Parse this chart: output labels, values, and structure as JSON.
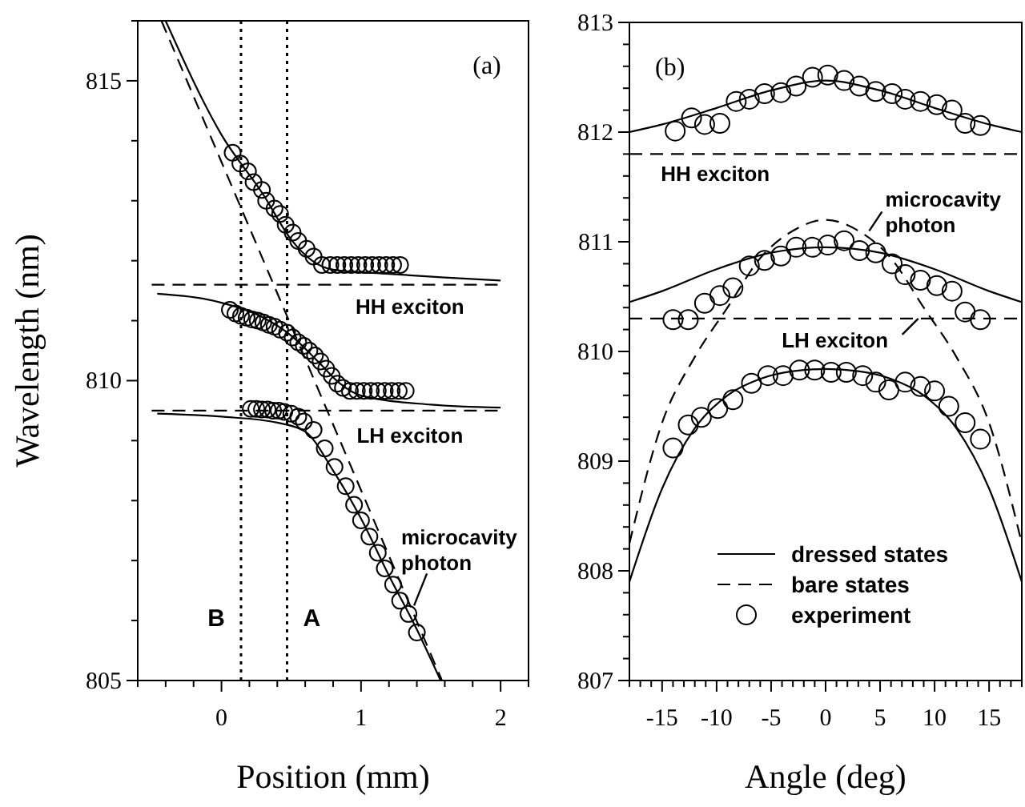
{
  "chart_data": [
    {
      "type": "line",
      "xlabel": "Position (mm)",
      "ylabel": "Wavelength (nm)",
      "xlim": [
        -0.6,
        2.2
      ],
      "ylim": [
        805,
        816
      ],
      "xticks": [
        {
          "value": -0.6,
          "label": null
        },
        {
          "value": -0.4,
          "label": null
        },
        {
          "value": -0.2,
          "label": null
        },
        0,
        {
          "value": 0.2,
          "label": null
        },
        {
          "value": 0.4,
          "label": null
        },
        {
          "value": 0.6,
          "label": null
        },
        {
          "value": 0.8,
          "label": null
        },
        1,
        {
          "value": 1.2,
          "label": null
        },
        {
          "value": 1.4,
          "label": null
        },
        {
          "value": 1.6,
          "label": null
        },
        {
          "value": 1.8,
          "label": null
        },
        2,
        {
          "value": 2.2,
          "label": null
        }
      ],
      "yticks": [
        805,
        {
          "value": 806,
          "label": null
        },
        {
          "value": 807,
          "label": null
        },
        {
          "value": 808,
          "label": null
        },
        {
          "value": 809,
          "label": null
        },
        810,
        {
          "value": 811,
          "label": null
        },
        {
          "value": 812,
          "label": null
        },
        {
          "value": 813,
          "label": null
        },
        {
          "value": 814,
          "label": null
        },
        815,
        {
          "value": 816,
          "label": null
        }
      ],
      "series": [
        {
          "type": "line",
          "color": "#000000",
          "line_style": "solid",
          "x": [
            -0.4,
            0,
            0.3,
            0.5,
            0.65,
            0.8,
            1.2,
            1.6,
            2.0
          ],
          "values": [
            816,
            814.1,
            813.1,
            812.35,
            812.0,
            811.85,
            811.78,
            811.72,
            811.67
          ]
        },
        {
          "type": "line",
          "color": "#000000",
          "line_style": "solid",
          "x": [
            -0.46,
            0,
            0.3,
            0.5,
            0.7,
            0.85,
            1.0,
            1.5,
            2.0
          ],
          "values": [
            811.45,
            811.3,
            811.05,
            810.75,
            810.3,
            809.95,
            809.75,
            809.6,
            809.55
          ]
        },
        {
          "type": "line",
          "color": "#000000",
          "line_style": "solid",
          "x": [
            -0.46,
            0,
            0.4,
            0.6,
            0.8,
            1.0,
            1.2,
            1.4,
            1.57
          ],
          "values": [
            809.45,
            809.4,
            809.3,
            809.15,
            808.5,
            807.7,
            806.75,
            805.85,
            805.0
          ]
        },
        {
          "type": "line",
          "color": "#000000",
          "line_style": "dashed",
          "x": [
            -0.43,
            1.58
          ],
          "values": [
            816,
            805
          ]
        },
        {
          "type": "line",
          "color": "#000000",
          "line_style": "dashed",
          "x": [
            -0.5,
            2.0
          ],
          "values": [
            811.6,
            811.6
          ]
        },
        {
          "type": "line",
          "color": "#000000",
          "line_style": "dashed",
          "x": [
            -0.5,
            2.0
          ],
          "values": [
            809.5,
            809.5
          ]
        },
        {
          "type": "scatter",
          "color": "#000000",
          "marker": "circle",
          "x": [
            0.08,
            0.135,
            0.19,
            0.23,
            0.29,
            0.32,
            0.38,
            0.42,
            0.46,
            0.51,
            0.55,
            0.61,
            0.66,
            0.72,
            0.78,
            0.83,
            0.88,
            0.93,
            0.98,
            1.03,
            1.08,
            1.13,
            1.18,
            1.23,
            1.28
          ],
          "values": [
            813.8,
            813.62,
            813.49,
            813.31,
            813.18,
            813.0,
            812.87,
            812.78,
            812.6,
            812.47,
            812.33,
            812.2,
            812.07,
            811.93,
            811.93,
            811.93,
            811.93,
            811.93,
            811.93,
            811.93,
            811.93,
            811.93,
            811.93,
            811.93,
            811.93
          ]
        },
        {
          "type": "scatter",
          "color": "#000000",
          "marker": "circle",
          "x": [
            0.06,
            0.1,
            0.14,
            0.18,
            0.22,
            0.26,
            0.3,
            0.34,
            0.38,
            0.42,
            0.47,
            0.51,
            0.55,
            0.59,
            0.63,
            0.67,
            0.71,
            0.75,
            0.79,
            0.83,
            0.87,
            0.92,
            0.97,
            1.02,
            1.07,
            1.12,
            1.17,
            1.22,
            1.27,
            1.32
          ],
          "values": [
            811.18,
            811.12,
            811.08,
            811.05,
            811.02,
            811.0,
            810.97,
            810.93,
            810.9,
            810.85,
            810.8,
            810.72,
            810.64,
            810.58,
            810.5,
            810.42,
            810.32,
            810.2,
            810.08,
            809.95,
            809.88,
            809.83,
            809.83,
            809.83,
            809.83,
            809.83,
            809.83,
            809.83,
            809.83,
            809.83
          ]
        },
        {
          "type": "scatter",
          "color": "#000000",
          "marker": "circle",
          "x": [
            0.21,
            0.25,
            0.29,
            0.33,
            0.37,
            0.41,
            0.45,
            0.5,
            0.55,
            0.59,
            0.66,
            0.74,
            0.81,
            0.89,
            0.95,
            1.0,
            1.06,
            1.12,
            1.17,
            1.23,
            1.28,
            1.34,
            1.4
          ],
          "values": [
            809.53,
            809.53,
            809.52,
            809.52,
            809.5,
            809.5,
            809.48,
            809.45,
            809.4,
            809.32,
            809.18,
            808.87,
            808.56,
            808.24,
            807.93,
            807.67,
            807.4,
            807.13,
            806.87,
            806.6,
            806.33,
            806.11,
            805.8
          ]
        }
      ],
      "ref_lines": [
        {
          "axis": "x",
          "value": 0.14,
          "label": "B",
          "line_style": "dotted"
        },
        {
          "axis": "x",
          "value": 0.47,
          "label": "A",
          "line_style": "dotted"
        }
      ],
      "annotations": [
        "(a)",
        {
          "text": "HH exciton",
          "x": 1.35,
          "y": 811.6
        },
        {
          "text": "LH exciton",
          "x": 1.35,
          "y": 809.5
        },
        {
          "text": "microcavity photon",
          "x": 1.38,
          "y": 806.25
        }
      ]
    },
    {
      "type": "line",
      "xlabel": "Angle (deg)",
      "xlim": [
        -18,
        18
      ],
      "ylim": [
        807,
        813
      ],
      "legend": "bottom right",
      "xticks": [
        {
          "value": -18,
          "label": null
        },
        {
          "value": -17,
          "label": null
        },
        {
          "value": -16,
          "label": null
        },
        -15,
        {
          "value": -14,
          "label": null
        },
        {
          "value": -13,
          "label": null
        },
        {
          "value": -12,
          "label": null
        },
        {
          "value": -11,
          "label": null
        },
        -10,
        {
          "value": -9,
          "label": null
        },
        {
          "value": -8,
          "label": null
        },
        {
          "value": -7,
          "label": null
        },
        {
          "value": -6,
          "label": null
        },
        -5,
        {
          "value": -4,
          "label": null
        },
        {
          "value": -3,
          "label": null
        },
        {
          "value": -2,
          "label": null
        },
        {
          "value": -1,
          "label": null
        },
        0,
        {
          "value": 1,
          "label": null
        },
        {
          "value": 2,
          "label": null
        },
        {
          "value": 3,
          "label": null
        },
        {
          "value": 4,
          "label": null
        },
        5,
        {
          "value": 6,
          "label": null
        },
        {
          "value": 7,
          "label": null
        },
        {
          "value": 8,
          "label": null
        },
        {
          "value": 9,
          "label": null
        },
        10,
        {
          "value": 11,
          "label": null
        },
        {
          "value": 12,
          "label": null
        },
        {
          "value": 13,
          "label": null
        },
        {
          "value": 14,
          "label": null
        },
        15,
        {
          "value": 16,
          "label": null
        },
        {
          "value": 17,
          "label": null
        },
        {
          "value": 18,
          "label": null
        }
      ],
      "yticks": [
        807,
        {
          "value": 807.2,
          "label": null
        },
        {
          "value": 807.4,
          "label": null
        },
        {
          "value": 807.6,
          "label": null
        },
        {
          "value": 807.8,
          "label": null
        },
        808,
        {
          "value": 808.2,
          "label": null
        },
        {
          "value": 808.4,
          "label": null
        },
        {
          "value": 808.6,
          "label": null
        },
        {
          "value": 808.8,
          "label": null
        },
        809,
        {
          "value": 809.2,
          "label": null
        },
        {
          "value": 809.4,
          "label": null
        },
        {
          "value": 809.6,
          "label": null
        },
        {
          "value": 809.8,
          "label": null
        },
        810,
        {
          "value": 810.2,
          "label": null
        },
        {
          "value": 810.4,
          "label": null
        },
        {
          "value": 810.6,
          "label": null
        },
        {
          "value": 810.8,
          "label": null
        },
        811,
        {
          "value": 811.2,
          "label": null
        },
        {
          "value": 811.4,
          "label": null
        },
        {
          "value": 811.6,
          "label": null
        },
        {
          "value": 811.8,
          "label": null
        },
        812,
        {
          "value": 812.2,
          "label": null
        },
        {
          "value": 812.4,
          "label": null
        },
        {
          "value": 812.6,
          "label": null
        },
        {
          "value": 812.8,
          "label": null
        },
        813
      ],
      "series": [
        {
          "type": "line",
          "name": "dressed states",
          "color": "#000000",
          "line_style": "solid",
          "x": [
            -18,
            -15,
            -10,
            -5,
            0,
            5,
            10,
            15,
            18
          ],
          "values": [
            812.0,
            812.07,
            812.22,
            812.38,
            812.47,
            812.38,
            812.22,
            812.07,
            812.0
          ]
        },
        {
          "type": "line",
          "color": "#000000",
          "line_style": "solid",
          "x": [
            -18,
            -15,
            -10,
            -5,
            0,
            5,
            10,
            15,
            18
          ],
          "values": [
            810.45,
            810.55,
            810.75,
            810.9,
            810.95,
            810.9,
            810.75,
            810.55,
            810.45
          ]
        },
        {
          "type": "line",
          "color": "#000000",
          "line_style": "solid",
          "x": [
            -18,
            -15,
            -12,
            -9,
            -6,
            -3,
            0,
            3,
            6,
            9,
            12,
            15,
            18
          ],
          "values": [
            807.9,
            808.75,
            809.3,
            809.6,
            809.75,
            809.82,
            809.84,
            809.82,
            809.75,
            809.6,
            809.3,
            808.75,
            807.9
          ]
        },
        {
          "type": "line",
          "name": "bare states",
          "color": "#000000",
          "line_style": "dashed",
          "x": [
            -18,
            -15,
            -12,
            -9,
            -6,
            -3,
            0,
            3,
            6,
            9,
            12,
            15,
            18
          ],
          "values": [
            808.25,
            809.35,
            809.95,
            810.4,
            810.85,
            811.1,
            811.2,
            811.1,
            810.85,
            810.4,
            809.95,
            809.35,
            808.25
          ]
        },
        {
          "type": "line",
          "color": "#000000",
          "line_style": "dashed",
          "x": [
            -18,
            18
          ],
          "values": [
            811.8,
            811.8
          ]
        },
        {
          "type": "line",
          "color": "#000000",
          "line_style": "dashed",
          "x": [
            -18,
            18
          ],
          "values": [
            810.3,
            810.3
          ]
        },
        {
          "type": "scatter",
          "name": "experiment",
          "color": "#000000",
          "marker": "circle",
          "x": [
            -13.8,
            -12.3,
            -11.1,
            -9.7,
            -8.2,
            -7.0,
            -5.6,
            -4.1,
            -2.7,
            -1.2,
            0.2,
            1.7,
            3.1,
            4.6,
            6.1,
            7.3,
            8.7,
            10.2,
            11.6,
            12.8,
            14.2
          ],
          "values": [
            812.01,
            812.13,
            812.07,
            812.08,
            812.28,
            812.3,
            812.35,
            812.36,
            812.42,
            812.5,
            812.52,
            812.47,
            812.42,
            812.37,
            812.35,
            812.3,
            812.28,
            812.25,
            812.2,
            812.08,
            812.06
          ]
        },
        {
          "type": "scatter",
          "color": "#000000",
          "marker": "circle",
          "x": [
            -14.0,
            -12.6,
            -11.1,
            -9.7,
            -8.5,
            -7.0,
            -5.6,
            -4.1,
            -2.7,
            -1.2,
            0.2,
            1.7,
            3.1,
            4.6,
            6.1,
            7.3,
            8.7,
            10.2,
            11.6,
            12.8,
            14.2
          ],
          "values": [
            810.29,
            810.29,
            810.44,
            810.51,
            810.58,
            810.78,
            810.83,
            810.87,
            810.95,
            810.95,
            810.97,
            811.01,
            810.92,
            810.9,
            810.8,
            810.7,
            810.65,
            810.6,
            810.55,
            810.36,
            810.29
          ]
        },
        {
          "type": "scatter",
          "color": "#000000",
          "marker": "circle",
          "x": [
            -14.0,
            -12.6,
            -11.4,
            -9.9,
            -8.5,
            -6.8,
            -5.3,
            -3.9,
            -2.4,
            -1.0,
            0.5,
            1.9,
            3.4,
            4.6,
            5.8,
            7.3,
            8.7,
            10.0,
            11.3,
            12.8,
            14.2
          ],
          "values": [
            809.12,
            809.33,
            809.4,
            809.48,
            809.56,
            809.71,
            809.78,
            809.78,
            809.83,
            809.83,
            809.81,
            809.81,
            809.78,
            809.72,
            809.65,
            809.72,
            809.68,
            809.64,
            809.5,
            809.35,
            809.2
          ]
        }
      ],
      "annotations": [
        "(b)",
        {
          "text": "HH exciton",
          "x": -11,
          "y": 811.8
        },
        {
          "text": "microcavity photon",
          "x": 4,
          "y": 811.1
        },
        {
          "text": "LH exciton",
          "x": 8.5,
          "y": 810.3
        }
      ]
    }
  ]
}
